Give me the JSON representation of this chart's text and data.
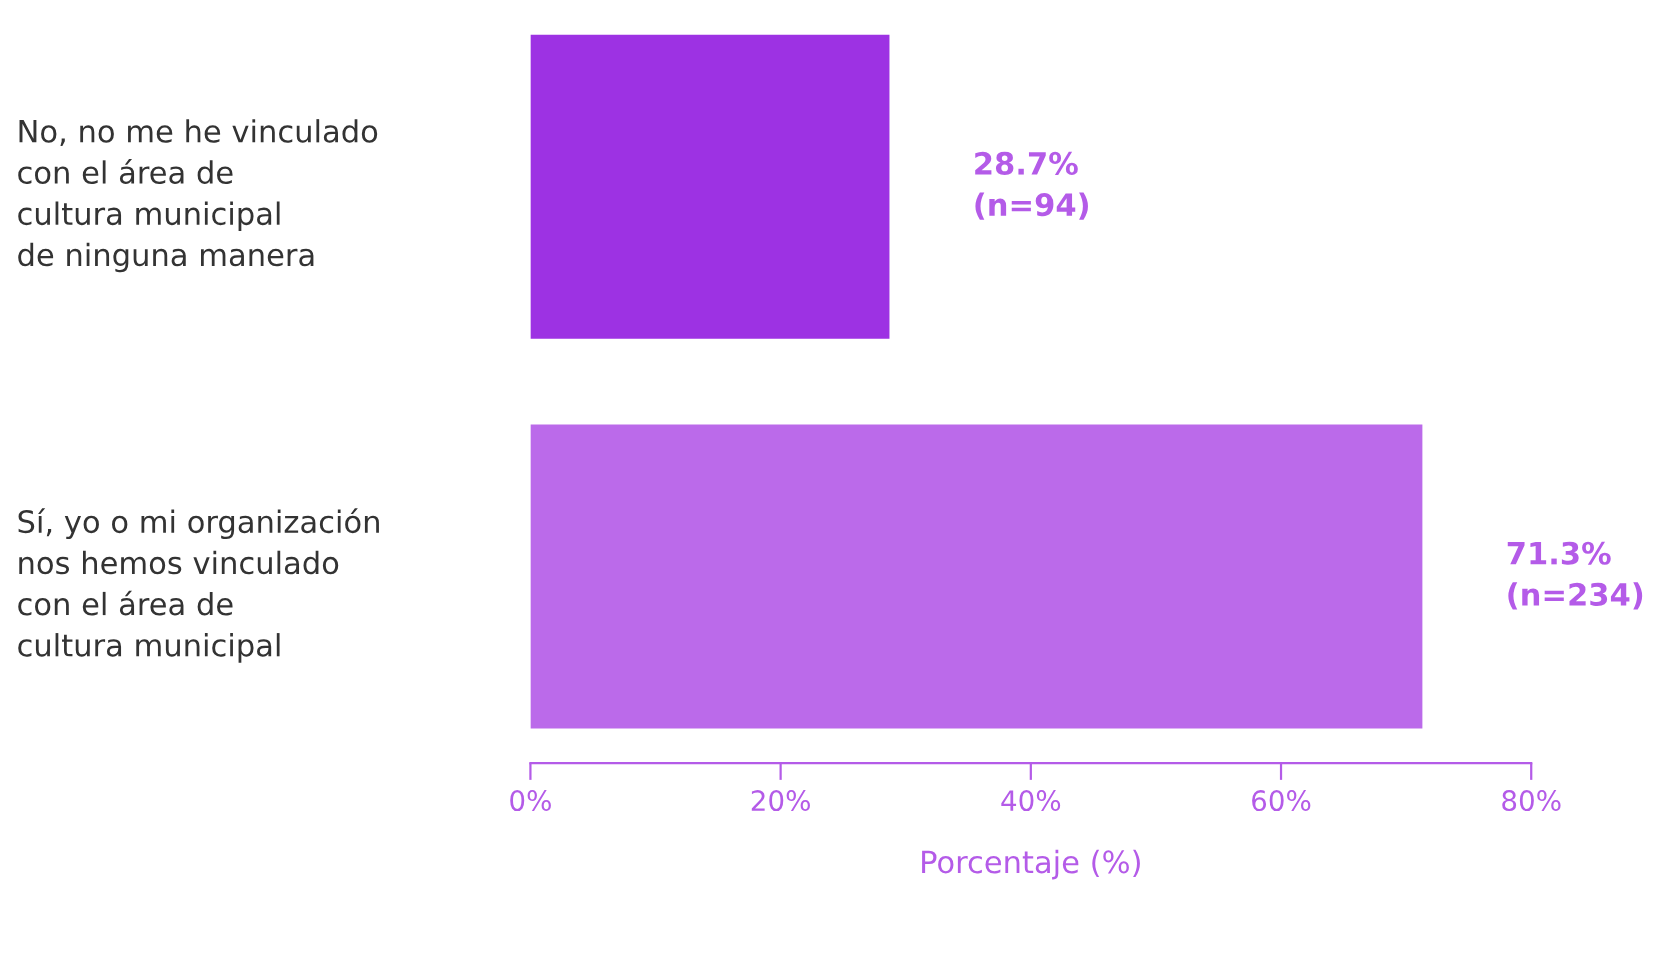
{
  "chart_data": {
    "type": "bar",
    "orientation": "horizontal",
    "categories": [
      "No, no me he vinculado\ncon el área de\ncultura municipal\nde ninguna manera",
      "Sí, yo o mi organización\nnos hemos vinculado\ncon el área de\ncultura municipal"
    ],
    "values": [
      28.7,
      71.3
    ],
    "colors": [
      "#9d32e3",
      "#bb6aea"
    ],
    "value_labels": [
      "28.7%\n(n=94)",
      "71.3%\n(n=234)"
    ],
    "xlabel": "Porcentaje (%)",
    "xlim": [
      0,
      80
    ],
    "xticks": [
      {
        "value": 0,
        "label": "0%"
      },
      {
        "value": 20,
        "label": "20%"
      },
      {
        "value": 40,
        "label": "40%"
      },
      {
        "value": 60,
        "label": "60%"
      },
      {
        "value": 80,
        "label": "80%"
      }
    ],
    "grid": false,
    "legend": false
  }
}
